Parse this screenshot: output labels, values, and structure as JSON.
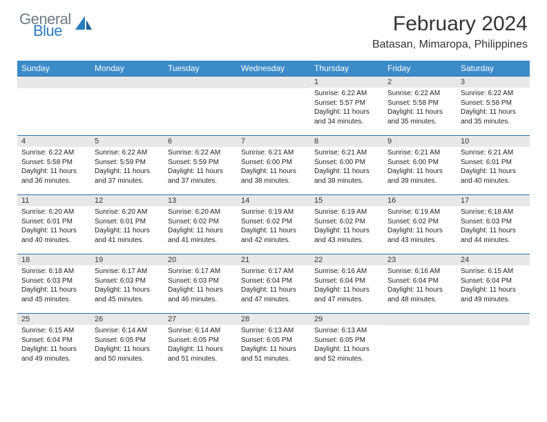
{
  "brand": {
    "part1": "General",
    "part2": "Blue"
  },
  "title": "February 2024",
  "location": "Batasan, Mimaropa, Philippines",
  "colors": {
    "header_bg": "#3b8bc9",
    "header_border": "#2b6fa8",
    "daynum_bg": "#e8e8e8",
    "logo_gray": "#6b7a87",
    "logo_blue": "#2b7bbf"
  },
  "day_headers": [
    "Sunday",
    "Monday",
    "Tuesday",
    "Wednesday",
    "Thursday",
    "Friday",
    "Saturday"
  ],
  "weeks": [
    [
      null,
      null,
      null,
      null,
      {
        "n": "1",
        "sr": "6:22 AM",
        "ss": "5:57 PM",
        "dl": "11 hours and 34 minutes."
      },
      {
        "n": "2",
        "sr": "6:22 AM",
        "ss": "5:58 PM",
        "dl": "11 hours and 35 minutes."
      },
      {
        "n": "3",
        "sr": "6:22 AM",
        "ss": "5:58 PM",
        "dl": "11 hours and 35 minutes."
      }
    ],
    [
      {
        "n": "4",
        "sr": "6:22 AM",
        "ss": "5:58 PM",
        "dl": "11 hours and 36 minutes."
      },
      {
        "n": "5",
        "sr": "6:22 AM",
        "ss": "5:59 PM",
        "dl": "11 hours and 37 minutes."
      },
      {
        "n": "6",
        "sr": "6:22 AM",
        "ss": "5:59 PM",
        "dl": "11 hours and 37 minutes."
      },
      {
        "n": "7",
        "sr": "6:21 AM",
        "ss": "6:00 PM",
        "dl": "11 hours and 38 minutes."
      },
      {
        "n": "8",
        "sr": "6:21 AM",
        "ss": "6:00 PM",
        "dl": "11 hours and 38 minutes."
      },
      {
        "n": "9",
        "sr": "6:21 AM",
        "ss": "6:00 PM",
        "dl": "11 hours and 39 minutes."
      },
      {
        "n": "10",
        "sr": "6:21 AM",
        "ss": "6:01 PM",
        "dl": "11 hours and 40 minutes."
      }
    ],
    [
      {
        "n": "11",
        "sr": "6:20 AM",
        "ss": "6:01 PM",
        "dl": "11 hours and 40 minutes."
      },
      {
        "n": "12",
        "sr": "6:20 AM",
        "ss": "6:01 PM",
        "dl": "11 hours and 41 minutes."
      },
      {
        "n": "13",
        "sr": "6:20 AM",
        "ss": "6:02 PM",
        "dl": "11 hours and 41 minutes."
      },
      {
        "n": "14",
        "sr": "6:19 AM",
        "ss": "6:02 PM",
        "dl": "11 hours and 42 minutes."
      },
      {
        "n": "15",
        "sr": "6:19 AM",
        "ss": "6:02 PM",
        "dl": "11 hours and 43 minutes."
      },
      {
        "n": "16",
        "sr": "6:19 AM",
        "ss": "6:02 PM",
        "dl": "11 hours and 43 minutes."
      },
      {
        "n": "17",
        "sr": "6:18 AM",
        "ss": "6:03 PM",
        "dl": "11 hours and 44 minutes."
      }
    ],
    [
      {
        "n": "18",
        "sr": "6:18 AM",
        "ss": "6:03 PM",
        "dl": "11 hours and 45 minutes."
      },
      {
        "n": "19",
        "sr": "6:17 AM",
        "ss": "6:03 PM",
        "dl": "11 hours and 45 minutes."
      },
      {
        "n": "20",
        "sr": "6:17 AM",
        "ss": "6:03 PM",
        "dl": "11 hours and 46 minutes."
      },
      {
        "n": "21",
        "sr": "6:17 AM",
        "ss": "6:04 PM",
        "dl": "11 hours and 47 minutes."
      },
      {
        "n": "22",
        "sr": "6:16 AM",
        "ss": "6:04 PM",
        "dl": "11 hours and 47 minutes."
      },
      {
        "n": "23",
        "sr": "6:16 AM",
        "ss": "6:04 PM",
        "dl": "11 hours and 48 minutes."
      },
      {
        "n": "24",
        "sr": "6:15 AM",
        "ss": "6:04 PM",
        "dl": "11 hours and 49 minutes."
      }
    ],
    [
      {
        "n": "25",
        "sr": "6:15 AM",
        "ss": "6:04 PM",
        "dl": "11 hours and 49 minutes."
      },
      {
        "n": "26",
        "sr": "6:14 AM",
        "ss": "6:05 PM",
        "dl": "11 hours and 50 minutes."
      },
      {
        "n": "27",
        "sr": "6:14 AM",
        "ss": "6:05 PM",
        "dl": "11 hours and 51 minutes."
      },
      {
        "n": "28",
        "sr": "6:13 AM",
        "ss": "6:05 PM",
        "dl": "11 hours and 51 minutes."
      },
      {
        "n": "29",
        "sr": "6:13 AM",
        "ss": "6:05 PM",
        "dl": "11 hours and 52 minutes."
      },
      null,
      null
    ]
  ],
  "labels": {
    "sunrise": "Sunrise: ",
    "sunset": "Sunset: ",
    "daylight": "Daylight: "
  }
}
